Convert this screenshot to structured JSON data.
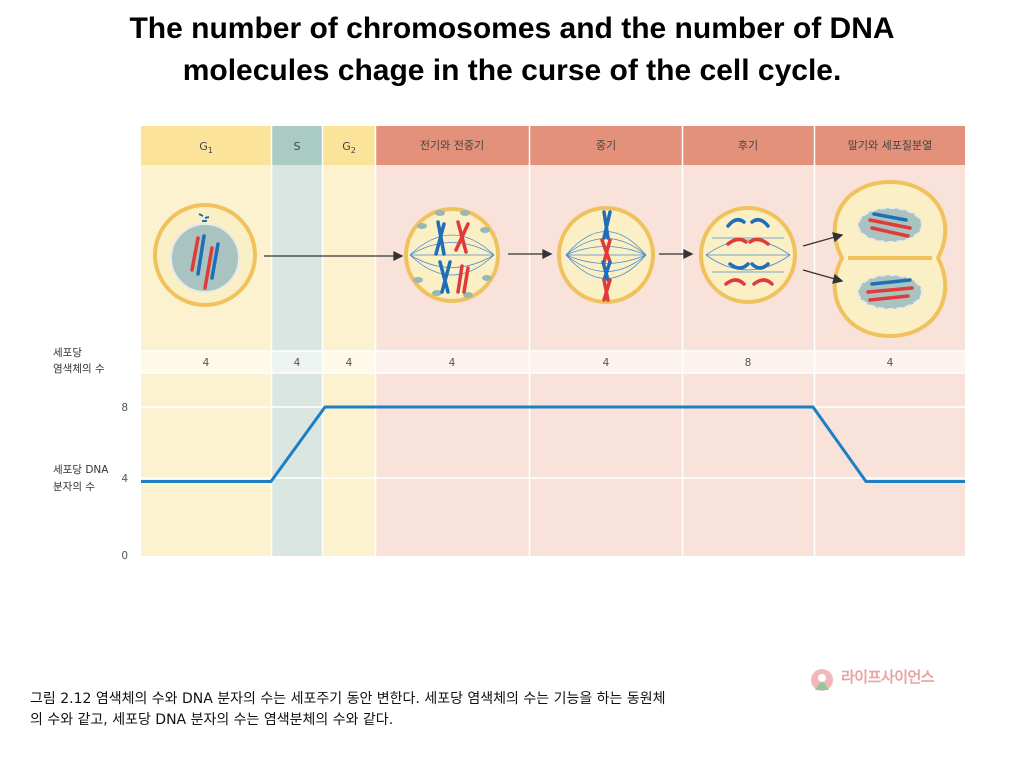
{
  "title": {
    "line1": "The number of chromosomes and the number of DNA",
    "line2": "molecules chage in the curse of the cell cycle."
  },
  "phases": [
    {
      "id": "g1",
      "label": "G",
      "sub": "1",
      "chromosomes": "4"
    },
    {
      "id": "s",
      "label": "S",
      "sub": "",
      "chromosomes": "4"
    },
    {
      "id": "g2",
      "label": "G",
      "sub": "2",
      "chromosomes": "4"
    },
    {
      "id": "prophase",
      "label": "전기와 전중기",
      "sub": "",
      "chromosomes": "4"
    },
    {
      "id": "metaphase",
      "label": "중기",
      "sub": "",
      "chromosomes": "4"
    },
    {
      "id": "anaphase",
      "label": "후기",
      "sub": "",
      "chromosomes": "8"
    },
    {
      "id": "telophase",
      "label": "말기와 세포질분열",
      "sub": "",
      "chromosomes": "4"
    }
  ],
  "labels": {
    "chromosomes_per_cell_1": "세포당",
    "chromosomes_per_cell_2": "염색체의 수",
    "dna_per_cell_1": "세포당 DNA",
    "dna_per_cell_2": "분자의 수"
  },
  "chart_data": {
    "type": "line",
    "title": "",
    "xlabel": "",
    "ylabel": "세포당 DNA 분자의 수",
    "yticks": [
      "8",
      "4",
      "0"
    ],
    "ylim": [
      0,
      8
    ],
    "categories": [
      "G1",
      "S",
      "G2",
      "전기와 전중기",
      "중기",
      "후기",
      "말기와 세포질분열"
    ],
    "series": [
      {
        "values_note_free": true,
        "points": [
          {
            "phase": "G1 start",
            "y": 4
          },
          {
            "phase": "G1 end",
            "y": 4
          },
          {
            "phase": "S end",
            "y": 8
          },
          {
            "phase": "후기 end",
            "y": 8
          },
          {
            "phase": "말기와 세포질분열 (after division)",
            "y": 4
          },
          {
            "phase": "말기와 세포질분열 end",
            "y": 4
          }
        ]
      }
    ]
  },
  "caption": {
    "line1": " 그림 2.12 염색체의 수와 DNA 분자의 수는 세포주기 동안 변한다. 세포당 염색체의 수는 기능을 하는 동원체",
    "line2": "의 수와 같고, 세포당 DNA 분자의 수는 염색분체의 수와 같다."
  },
  "logo": {
    "text": "라이프사이언스"
  },
  "colors": {
    "interphase_header": "#fbe39a",
    "s_header": "#a9cbc2",
    "mitosis_header": "#e3917a",
    "interphase_bg": "#fdf2cf",
    "s_bg": "#d9e6e1",
    "mitosis_bg": "#f8e2da",
    "line": "#1d7fc4",
    "chromosome_red": "#e03a3a",
    "chromosome_blue": "#1f6fb8",
    "cell_outline": "#f0c25e"
  }
}
